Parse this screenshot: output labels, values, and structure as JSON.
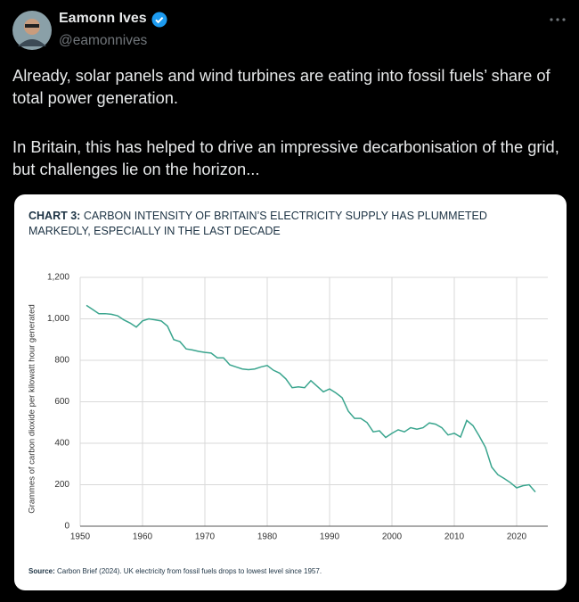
{
  "tweet": {
    "name": "Eamonn Ives",
    "handle": "@eamonnives",
    "paragraphs": [
      "Already, solar panels and wind turbines are eating into fossil fuels’ share of total power generation.",
      "In Britain, this has helped to drive an impressive decarbonisation of the grid, but challenges lie on the horizon..."
    ]
  },
  "chart_data": {
    "type": "line",
    "label": "CHART 3:",
    "title": "CARBON INTENSITY OF BRITAIN’S ELECTRICITY SUPPLY HAS PLUMMETED MARKEDLY, ESPECIALLY IN THE LAST DECADE",
    "y_label": "Grammes of carbon dioxide per kilowatt hour generated",
    "source_label": "Source:",
    "source": "Carbon Brief (2024). UK electricity from fossil fuels drops to lowest level since 1957.",
    "color": "#3aa58e",
    "grid": true,
    "x": [
      1951,
      1952,
      1953,
      1954,
      1955,
      1956,
      1957,
      1958,
      1959,
      1960,
      1961,
      1962,
      1963,
      1964,
      1965,
      1966,
      1967,
      1968,
      1969,
      1970,
      1971,
      1972,
      1973,
      1974,
      1975,
      1976,
      1977,
      1978,
      1979,
      1980,
      1981,
      1982,
      1983,
      1984,
      1985,
      1986,
      1987,
      1988,
      1989,
      1990,
      1991,
      1992,
      1993,
      1994,
      1995,
      1996,
      1997,
      1998,
      1999,
      2000,
      2001,
      2002,
      2003,
      2004,
      2005,
      2006,
      2007,
      2008,
      2009,
      2010,
      2011,
      2012,
      2013,
      2014,
      2015,
      2016,
      2017,
      2018,
      2019,
      2020,
      2021,
      2022,
      2023
    ],
    "values": [
      1065,
      1045,
      1025,
      1025,
      1022,
      1015,
      995,
      980,
      960,
      990,
      1000,
      995,
      990,
      965,
      900,
      890,
      855,
      850,
      843,
      838,
      835,
      812,
      812,
      778,
      768,
      758,
      755,
      758,
      768,
      775,
      752,
      738,
      710,
      668,
      672,
      668,
      702,
      675,
      648,
      662,
      643,
      620,
      555,
      520,
      520,
      500,
      455,
      460,
      428,
      448,
      465,
      455,
      475,
      468,
      475,
      498,
      492,
      475,
      440,
      448,
      430,
      510,
      485,
      435,
      380,
      285,
      248,
      230,
      210,
      185,
      195,
      200,
      165
    ],
    "xlim": [
      1950,
      2025
    ],
    "xticks": [
      1950,
      1960,
      1970,
      1980,
      1990,
      2000,
      2010,
      2020
    ],
    "ylim": [
      0,
      1200
    ],
    "yticks": [
      0,
      200,
      400,
      600,
      800,
      {
        "value": 1000,
        "label": "1,000"
      },
      {
        "value": 1200,
        "label": "1,200"
      }
    ]
  }
}
